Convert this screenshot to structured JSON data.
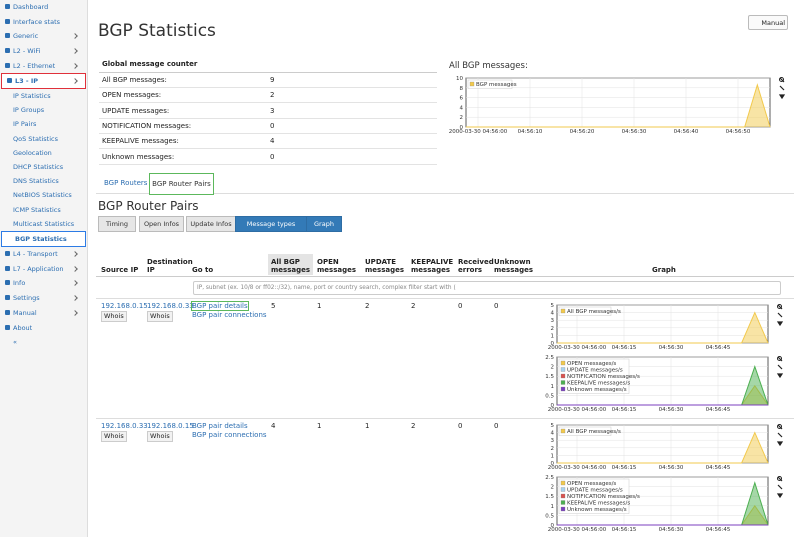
{
  "sidebar": {
    "items_top": [
      "Dashboard",
      "Interface stats",
      "Generic",
      "L2 - WiFi",
      "L2 - Ethernet"
    ],
    "open_item": "L3 - IP",
    "sub_items": [
      "IP Statistics",
      "IP Groups",
      "IP Pairs",
      "QoS Statistics",
      "Geolocation",
      "DHCP Statistics",
      "DNS Statistics",
      "NetBIOS Statistics",
      "ICMP Statistics",
      "Multicast Statistics",
      "BGP Statistics"
    ],
    "items_bottom": [
      "L4 - Transport",
      "L7 - Application",
      "Info",
      "Settings",
      "Manual",
      "About",
      "«"
    ]
  },
  "header": {
    "title": "BGP Statistics",
    "manual_button": "Manual"
  },
  "global_counter": {
    "title": "Global message counter",
    "rows": [
      [
        "All BGP messages:",
        9
      ],
      [
        "OPEN messages:",
        2
      ],
      [
        "UPDATE messages:",
        3
      ],
      [
        "NOTIFICATION messages:",
        0
      ],
      [
        "KEEPALIVE messages:",
        4
      ],
      [
        "Unknown messages:",
        0
      ]
    ]
  },
  "all_messages_chart": {
    "title": "All BGP messages:",
    "ylim": [
      0,
      10
    ],
    "yticks": [
      0,
      2,
      4,
      6,
      8,
      10
    ],
    "xticks": [
      "2000-03-30 04:56:00",
      "04:56:10",
      "04:56:20",
      "04:56:30",
      "04:56:40",
      "04:56:50"
    ],
    "series": [
      {
        "name": "BGP messages",
        "color": "#f2c94c",
        "values": [
          0,
          0,
          0,
          0,
          0,
          0,
          0,
          0,
          0,
          0,
          0,
          0,
          0,
          0,
          0,
          0,
          0,
          0,
          0,
          0,
          0,
          0,
          0,
          8.6,
          0
        ]
      }
    ]
  },
  "tabs": [
    "BGP Routers",
    "BGP Router Pairs"
  ],
  "section_title": "BGP Router Pairs",
  "buttons": [
    "Timing",
    "Open Infos",
    "Update Infos",
    "Message types",
    "Graph"
  ],
  "table": {
    "headers": [
      "Source IP",
      "Destination IP",
      "Go to",
      "All BGP messages",
      "OPEN messages",
      "UPDATE messages",
      "KEEPALIVE messages",
      "Received errors",
      "Unknown messages",
      "Graph"
    ],
    "filter_placeholder": "IP, subnet (ex. 10/8 or ff02::/32), name, port or country search, complex filter start with (",
    "whois": "Whois",
    "rows": [
      {
        "source": "192.168.0.15",
        "destination": "192.168.0.33",
        "links": [
          "BGP pair details",
          "BGP pair connections"
        ],
        "counts": [
          5,
          1,
          2,
          2,
          0,
          0
        ],
        "charts": [
          {
            "ylim": [
              0,
              5
            ],
            "yticks": [
              0,
              1,
              2,
              3,
              4,
              5
            ],
            "xticks": [
              "2000-03-30 04:56:00",
              "04:56:15",
              "04:56:30",
              "04:56:45"
            ],
            "series": [
              {
                "name": "All BGP messages/s",
                "color": "#f2c94c",
                "values": [
                  0,
                  0,
                  0,
                  0,
                  0,
                  0,
                  0,
                  0,
                  0,
                  0,
                  0,
                  0,
                  0,
                  0,
                  0,
                  4,
                  0
                ]
              }
            ]
          },
          {
            "ylim": [
              0,
              2.5
            ],
            "yticks": [
              0,
              0.5,
              1,
              1.5,
              2,
              2.5
            ],
            "xticks": [
              "2000-03-30 04:56:00",
              "04:56:15",
              "04:56:30",
              "04:56:45"
            ],
            "series": [
              {
                "name": "OPEN messages/s",
                "color": "#f2c94c",
                "values": [
                  0,
                  0,
                  0,
                  0,
                  0,
                  0,
                  0,
                  0,
                  0,
                  0,
                  0,
                  0,
                  0,
                  0,
                  0,
                  1,
                  0
                ]
              },
              {
                "name": "UPDATE messages/s",
                "color": "#a9d3f0",
                "values": [
                  0,
                  0,
                  0,
                  0,
                  0,
                  0,
                  0,
                  0,
                  0,
                  0,
                  0,
                  0,
                  0,
                  0,
                  0,
                  0,
                  0
                ]
              },
              {
                "name": "NOTIFICATION messages/s",
                "color": "#d9534f",
                "values": [
                  0,
                  0,
                  0,
                  0,
                  0,
                  0,
                  0,
                  0,
                  0,
                  0,
                  0,
                  0,
                  0,
                  0,
                  0,
                  0,
                  0
                ]
              },
              {
                "name": "KEEPALIVE messages/s",
                "color": "#4caf50",
                "values": [
                  0,
                  0,
                  0,
                  0,
                  0,
                  0,
                  0,
                  0,
                  0,
                  0,
                  0,
                  0,
                  0,
                  0,
                  0,
                  2,
                  0
                ]
              },
              {
                "name": "Unknown messages/s",
                "color": "#7b3fbf",
                "values": [
                  0,
                  0,
                  0,
                  0,
                  0,
                  0,
                  0,
                  0,
                  0,
                  0,
                  0,
                  0,
                  0,
                  0,
                  0,
                  0,
                  0
                ]
              }
            ]
          }
        ]
      },
      {
        "source": "192.168.0.33",
        "destination": "192.168.0.15",
        "links": [
          "BGP pair details",
          "BGP pair connections"
        ],
        "counts": [
          4,
          1,
          1,
          2,
          0,
          0
        ],
        "charts": [
          {
            "ylim": [
              0,
              5
            ],
            "yticks": [
              0,
              1,
              2,
              3,
              4,
              5
            ],
            "xticks": [
              "2000-03-30 04:56:00",
              "04:56:15",
              "04:56:30",
              "04:56:45"
            ],
            "series": [
              {
                "name": "All BGP messages/s",
                "color": "#f2c94c",
                "values": [
                  0,
                  0,
                  0,
                  0,
                  0,
                  0,
                  0,
                  0,
                  0,
                  0,
                  0,
                  0,
                  0,
                  0,
                  0,
                  4,
                  0
                ]
              }
            ]
          },
          {
            "ylim": [
              0,
              2.5
            ],
            "yticks": [
              0,
              0.5,
              1,
              1.5,
              2,
              2.5
            ],
            "xticks": [
              "2000-03-30 04:56:00",
              "04:56:15",
              "04:56:30",
              "04:56:45"
            ],
            "series": [
              {
                "name": "OPEN messages/s",
                "color": "#f2c94c",
                "values": [
                  0,
                  0,
                  0,
                  0,
                  0,
                  0,
                  0,
                  0,
                  0,
                  0,
                  0,
                  0,
                  0,
                  0,
                  0,
                  1,
                  0
                ]
              },
              {
                "name": "UPDATE messages/s",
                "color": "#a9d3f0",
                "values": [
                  0,
                  0,
                  0,
                  0,
                  0,
                  0,
                  0,
                  0,
                  0,
                  0,
                  0,
                  0,
                  0,
                  0,
                  0,
                  0,
                  0
                ]
              },
              {
                "name": "NOTIFICATION messages/s",
                "color": "#d9534f",
                "values": [
                  0,
                  0,
                  0,
                  0,
                  0,
                  0,
                  0,
                  0,
                  0,
                  0,
                  0,
                  0,
                  0,
                  0,
                  0,
                  0,
                  0
                ]
              },
              {
                "name": "KEEPALIVE messages/s",
                "color": "#4caf50",
                "values": [
                  0,
                  0,
                  0,
                  0,
                  0,
                  0,
                  0,
                  0,
                  0,
                  0,
                  0,
                  0,
                  0,
                  0,
                  0,
                  2.2,
                  0
                ]
              },
              {
                "name": "Unknown messages/s",
                "color": "#7b3fbf",
                "values": [
                  0,
                  0,
                  0,
                  0,
                  0,
                  0,
                  0,
                  0,
                  0,
                  0,
                  0,
                  0,
                  0,
                  0,
                  0,
                  0,
                  0
                ]
              }
            ]
          }
        ]
      }
    ]
  }
}
